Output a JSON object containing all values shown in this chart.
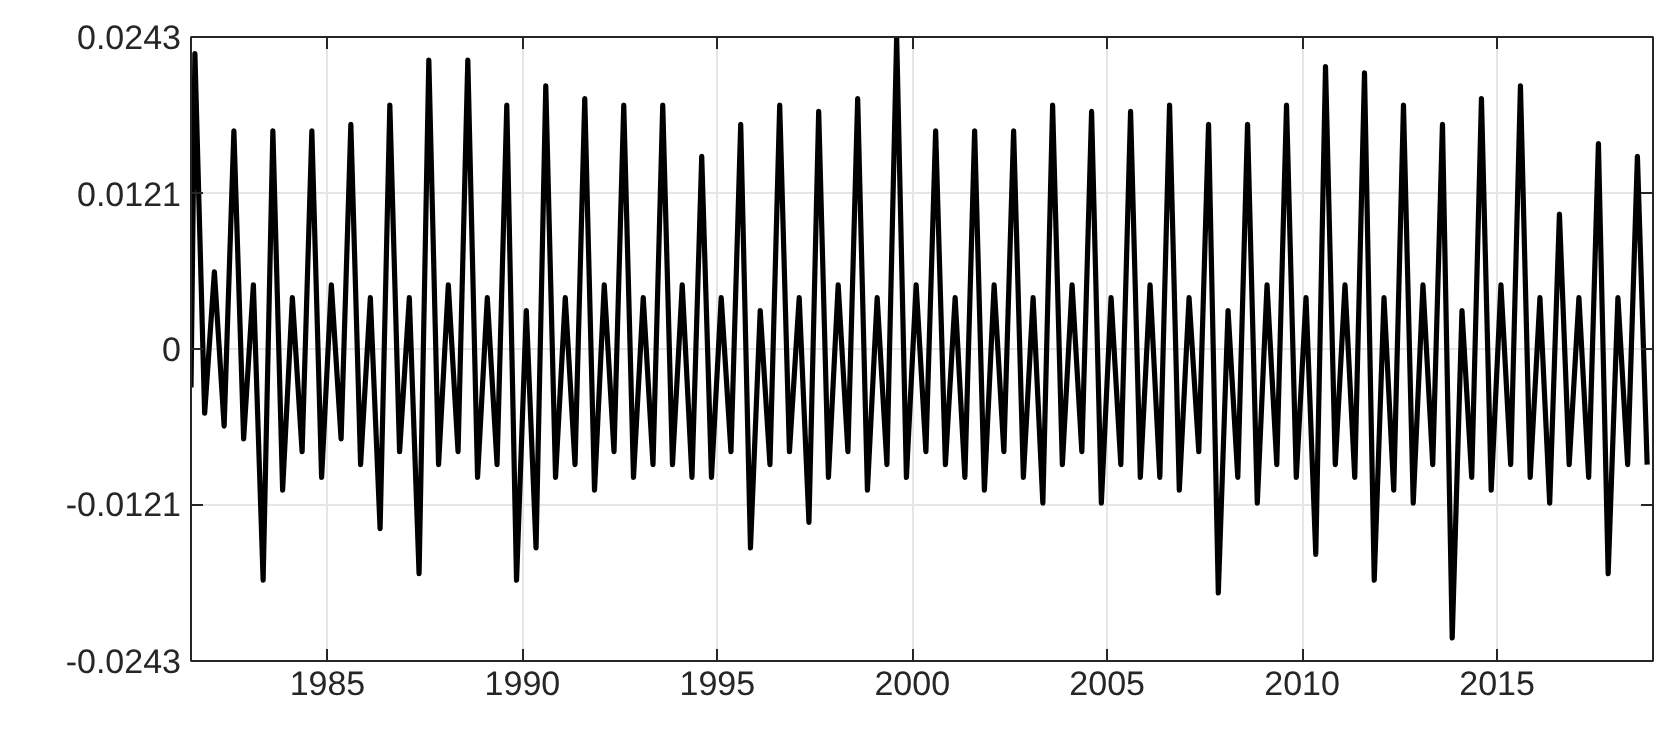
{
  "chart_data": {
    "type": "line",
    "x": [
      1981.5,
      1981.6,
      1981.85,
      1982.1,
      1982.35,
      1982.6,
      1982.85,
      1983.1,
      1983.35,
      1983.6,
      1983.85,
      1984.1,
      1984.35,
      1984.6,
      1984.85,
      1985.1,
      1985.35,
      1985.6,
      1985.85,
      1986.1,
      1986.35,
      1986.6,
      1986.85,
      1987.1,
      1987.35,
      1987.6,
      1987.85,
      1988.1,
      1988.35,
      1988.6,
      1988.85,
      1989.1,
      1989.35,
      1989.6,
      1989.85,
      1990.1,
      1990.35,
      1990.6,
      1990.85,
      1991.1,
      1991.35,
      1991.6,
      1991.85,
      1992.1,
      1992.35,
      1992.6,
      1992.85,
      1993.1,
      1993.35,
      1993.6,
      1993.85,
      1994.1,
      1994.35,
      1994.6,
      1994.85,
      1995.1,
      1995.35,
      1995.6,
      1995.85,
      1996.1,
      1996.35,
      1996.6,
      1996.85,
      1997.1,
      1997.35,
      1997.6,
      1997.85,
      1998.1,
      1998.35,
      1998.6,
      1998.85,
      1999.1,
      1999.35,
      1999.6,
      1999.85,
      2000.1,
      2000.35,
      2000.6,
      2000.85,
      2001.1,
      2001.35,
      2001.6,
      2001.85,
      2002.1,
      2002.35,
      2002.6,
      2002.85,
      2003.1,
      2003.35,
      2003.6,
      2003.85,
      2004.1,
      2004.35,
      2004.6,
      2004.85,
      2005.1,
      2005.35,
      2005.6,
      2005.85,
      2006.1,
      2006.35,
      2006.6,
      2006.85,
      2007.1,
      2007.35,
      2007.6,
      2007.85,
      2008.1,
      2008.35,
      2008.6,
      2008.85,
      2009.1,
      2009.35,
      2009.6,
      2009.85,
      2010.1,
      2010.35,
      2010.6,
      2010.85,
      2011.1,
      2011.35,
      2011.6,
      2011.85,
      2012.1,
      2012.35,
      2012.6,
      2012.85,
      2013.1,
      2013.35,
      2013.6,
      2013.85,
      2014.1,
      2014.35,
      2014.6,
      2014.85,
      2015.1,
      2015.35,
      2015.6,
      2015.85,
      2016.1,
      2016.35,
      2016.6,
      2016.85,
      2017.1,
      2017.35,
      2017.6,
      2017.85,
      2018.1,
      2018.35,
      2018.6,
      2018.85
    ],
    "series": [
      {
        "color": "#000000",
        "values": [
          -0.003,
          0.023,
          -0.005,
          0.006,
          -0.006,
          0.017,
          -0.007,
          0.005,
          -0.018,
          0.017,
          -0.011,
          0.004,
          -0.008,
          0.017,
          -0.01,
          0.005,
          -0.007,
          0.0175,
          -0.009,
          0.004,
          -0.014,
          0.019,
          -0.008,
          0.004,
          -0.0175,
          0.0225,
          -0.009,
          0.005,
          -0.008,
          0.0225,
          -0.01,
          0.004,
          -0.009,
          0.019,
          -0.018,
          0.003,
          -0.0155,
          0.0205,
          -0.01,
          0.004,
          -0.009,
          0.0195,
          -0.011,
          0.005,
          -0.008,
          0.019,
          -0.01,
          0.004,
          -0.009,
          0.019,
          -0.009,
          0.005,
          -0.01,
          0.015,
          -0.01,
          0.004,
          -0.008,
          0.0175,
          -0.0155,
          0.003,
          -0.009,
          0.019,
          -0.008,
          0.004,
          -0.0135,
          0.0185,
          -0.01,
          0.005,
          -0.008,
          0.0195,
          -0.011,
          0.004,
          -0.009,
          0.0243,
          -0.01,
          0.005,
          -0.008,
          0.017,
          -0.009,
          0.004,
          -0.01,
          0.017,
          -0.011,
          0.005,
          -0.008,
          0.017,
          -0.01,
          0.004,
          -0.012,
          0.019,
          -0.009,
          0.005,
          -0.008,
          0.0185,
          -0.012,
          0.004,
          -0.009,
          0.0185,
          -0.01,
          0.005,
          -0.01,
          0.019,
          -0.011,
          0.004,
          -0.008,
          0.0175,
          -0.019,
          0.003,
          -0.01,
          0.0175,
          -0.012,
          0.005,
          -0.009,
          0.019,
          -0.01,
          0.004,
          -0.016,
          0.022,
          -0.009,
          0.005,
          -0.01,
          0.0215,
          -0.018,
          0.004,
          -0.011,
          0.019,
          -0.012,
          0.005,
          -0.009,
          0.0175,
          -0.0225,
          0.003,
          -0.01,
          0.0195,
          -0.011,
          0.005,
          -0.009,
          0.0205,
          -0.01,
          0.004,
          -0.012,
          0.0105,
          -0.009,
          0.004,
          -0.01,
          0.016,
          -0.0175,
          0.004,
          -0.009,
          0.015,
          -0.009
        ]
      }
    ],
    "xlim": [
      1981.5,
      2019.0
    ],
    "xticks": [
      1985,
      1990,
      1995,
      2000,
      2005,
      2010,
      2015
    ],
    "ylim": [
      -0.0243,
      0.0243
    ],
    "yticks": [
      -0.0243,
      -0.0121,
      0,
      0.0121,
      0.0243
    ],
    "grid": true,
    "marker": "none",
    "line_style": "solid"
  }
}
